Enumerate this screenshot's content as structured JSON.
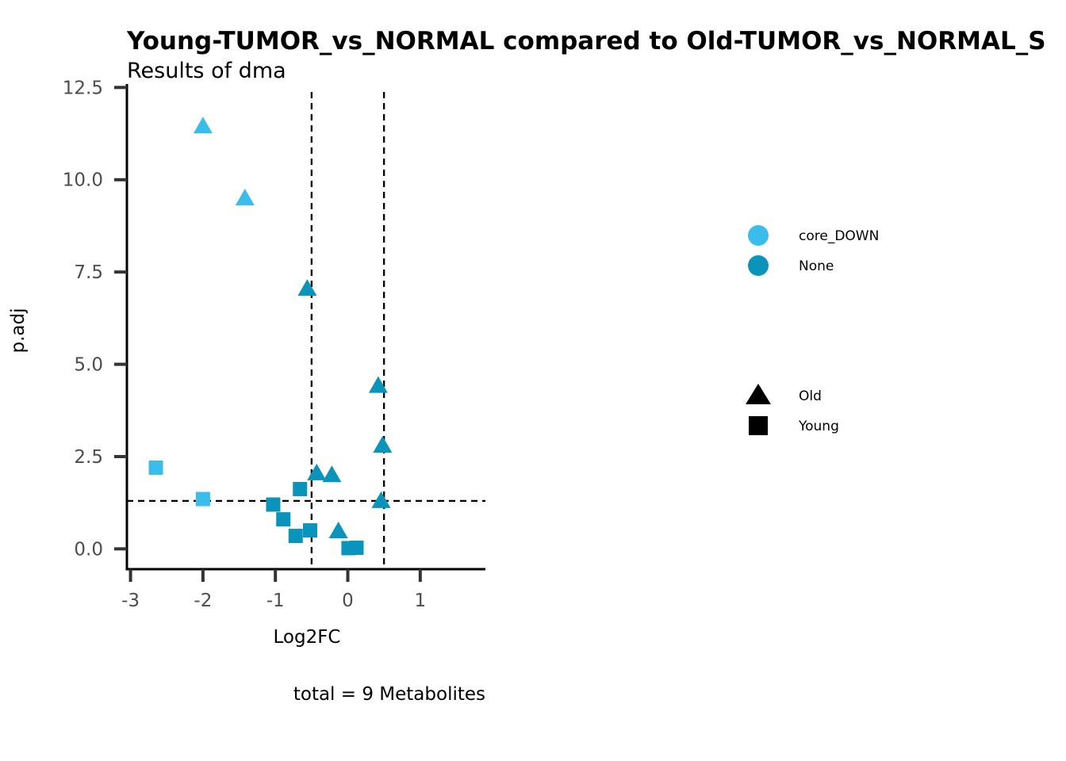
{
  "chart_data": {
    "type": "scatter",
    "title": "Young-TUMOR_vs_NORMAL compared to Old-TUMOR_vs_NORMAL_S",
    "subtitle": "Results of dma",
    "xlabel": "Log2FC",
    "ylabel": "p.adj",
    "caption": "total = 9 Metabolites",
    "xlim": [
      -3.05,
      1.9
    ],
    "ylim": [
      -0.55,
      12.55
    ],
    "x_ticks": [
      -3,
      -2,
      -1,
      0,
      1
    ],
    "x_tick_labels": [
      "-3",
      "-2",
      "-1",
      "0",
      "1"
    ],
    "y_ticks": [
      0,
      2.5,
      5,
      7.5,
      10,
      12.5
    ],
    "y_tick_labels": [
      "0.0",
      "2.5",
      "5.0",
      "7.5",
      "10.0",
      "12.5"
    ],
    "reference_lines": {
      "vertical": [
        -0.5,
        0.5
      ],
      "horizontal": [
        1.3
      ],
      "style": "dashed"
    },
    "grid": false,
    "legend_position": "right",
    "color_legend": [
      {
        "label": "core_DOWN",
        "color": "#3bbdec"
      },
      {
        "label": "None",
        "color": "#0a93bb"
      }
    ],
    "shape_legend": [
      {
        "label": "Old",
        "shape": "triangle"
      },
      {
        "label": "Young",
        "shape": "square"
      }
    ],
    "points": [
      {
        "x": -2.0,
        "y": 11.45,
        "group": "core_DOWN",
        "shape": "triangle"
      },
      {
        "x": -1.42,
        "y": 9.5,
        "group": "core_DOWN",
        "shape": "triangle"
      },
      {
        "x": -0.56,
        "y": 7.05,
        "group": "None",
        "shape": "triangle"
      },
      {
        "x": 0.42,
        "y": 4.42,
        "group": "None",
        "shape": "triangle"
      },
      {
        "x": 0.48,
        "y": 2.8,
        "group": "None",
        "shape": "triangle"
      },
      {
        "x": -0.43,
        "y": 2.05,
        "group": "None",
        "shape": "triangle"
      },
      {
        "x": -0.22,
        "y": 2.0,
        "group": "None",
        "shape": "triangle"
      },
      {
        "x": 0.46,
        "y": 1.3,
        "group": "None",
        "shape": "triangle"
      },
      {
        "x": -0.13,
        "y": 0.48,
        "group": "None",
        "shape": "triangle"
      },
      {
        "x": -2.65,
        "y": 2.2,
        "group": "core_DOWN",
        "shape": "square"
      },
      {
        "x": -2.0,
        "y": 1.35,
        "group": "core_DOWN",
        "shape": "square"
      },
      {
        "x": -0.66,
        "y": 1.62,
        "group": "None",
        "shape": "square"
      },
      {
        "x": -1.03,
        "y": 1.2,
        "group": "None",
        "shape": "square"
      },
      {
        "x": -0.89,
        "y": 0.8,
        "group": "None",
        "shape": "square"
      },
      {
        "x": -0.72,
        "y": 0.35,
        "group": "None",
        "shape": "square"
      },
      {
        "x": -0.52,
        "y": 0.5,
        "group": "None",
        "shape": "square"
      },
      {
        "x": 0.01,
        "y": 0.02,
        "group": "None",
        "shape": "square"
      },
      {
        "x": 0.12,
        "y": 0.03,
        "group": "None",
        "shape": "square"
      }
    ]
  }
}
